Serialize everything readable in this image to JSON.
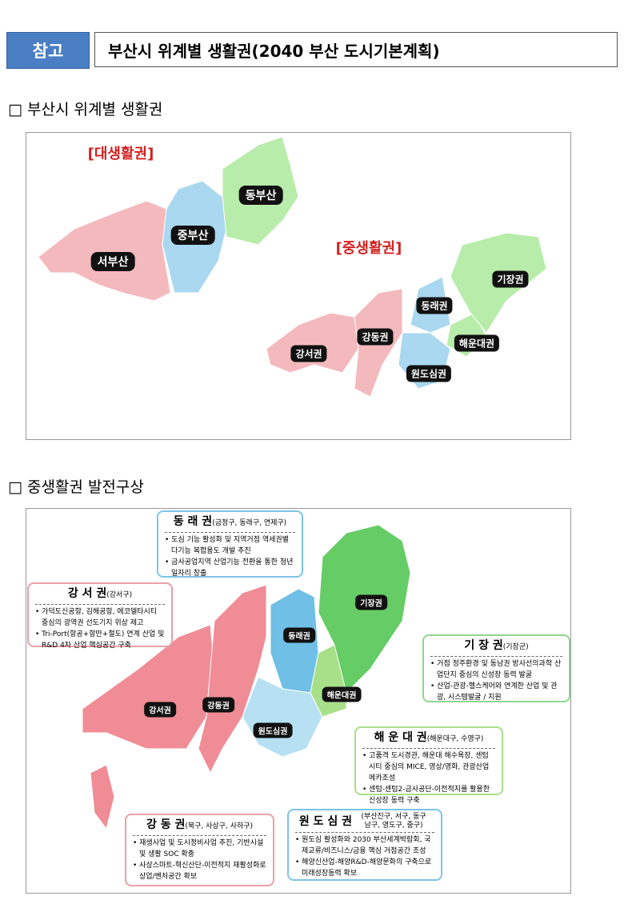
{
  "header": {
    "tag": "참고",
    "title": "부산시 위계별 생활권(2040 부산 도시기본계획)"
  },
  "section1": {
    "heading": "□ 부산시 위계별 생활권",
    "big_label": "[대생활권]",
    "mid_label": "[중생활권]",
    "big": [
      "동부산",
      "중부산",
      "서부산"
    ],
    "mid": [
      "기장권",
      "동래권",
      "강동권",
      "해운대권",
      "강서권",
      "원도심권"
    ]
  },
  "section2": {
    "heading": "□ 중생활권 발전구상",
    "map_labels": [
      "기장권",
      "동래권",
      "해운대권",
      "강서권",
      "강동권",
      "원도심권"
    ],
    "cards": [
      {
        "name": "동 래 권",
        "sub": "(금정구, 동래구, 연제구)",
        "bullets": [
          "• 도심 기능 활성화 및 지역거점 역세권별 다기능 복합용도 개발 추진",
          "• 금사공업지역 산업기능 전환을 통한 청년 일자리 창출"
        ],
        "color": "#7ec3e6"
      },
      {
        "name": "강 서 권",
        "sub": "(강서구)",
        "bullets": [
          "• 가덕도신공항, 김해공항, 에코델타시티 중심의 광역권 선도기지 위상 제고",
          "• Tri-Port(항공+항만+철도) 연계 산업 및 R&D 4차 산업 핵심공간 구축"
        ],
        "color": "#e8a0a8"
      },
      {
        "name": "기 장 권",
        "sub": "(기장군)",
        "bullets": [
          "• 거점 정주환경 및 동남권 방사선의과학 산업단지 중심의 신성장 동력 발굴",
          "• 산업-관광-헬스케어와 연계한 산업 및 관광, 시스템발굴 / 지원"
        ],
        "color": "#8fd68f"
      },
      {
        "name": "해 운 대 권",
        "sub": "(해운대구, 수영구)",
        "bullets": [
          "• 고품격 도시경관, 해운대 해수욕장, 센텀시티 중심의 MICE, 영상/영화, 관광산업 메카조성",
          "• 센텀-센텀2-금사공단-이전적지를 활용한 신성장 동력 구축"
        ],
        "color": "#a8e08a"
      },
      {
        "name": "강 동 권",
        "sub": "(북구, 사상구, 사하구)",
        "bullets": [
          "• 재생사업 및 도시정비사업 추진, 기반시설 및 생활 SOC 확충",
          "• 사상스마트-혁신산단-이전적지 재활성화로 상업/벤처공간 확보"
        ],
        "color": "#e8a0a8"
      },
      {
        "name": "원 도 심 권",
        "sub": "(부산진구, 서구, 동구 남구, 영도구, 중구)",
        "bullets": [
          "• 원도심 활성화와 2030 부산세계박람회, 국제교류/비즈니스/금융 핵심 거점공간 조성",
          "• 해양신산업-해양R&D-해양문화의 구축으로 미래성장동력 확보"
        ],
        "color": "#7ec3e6"
      }
    ]
  },
  "colors": {
    "pink": "#f3b3b8",
    "blue": "#a9d8f0",
    "green": "#b8ecaa",
    "kijang": "#7fd67a",
    "tag": "#4a7fc4"
  }
}
